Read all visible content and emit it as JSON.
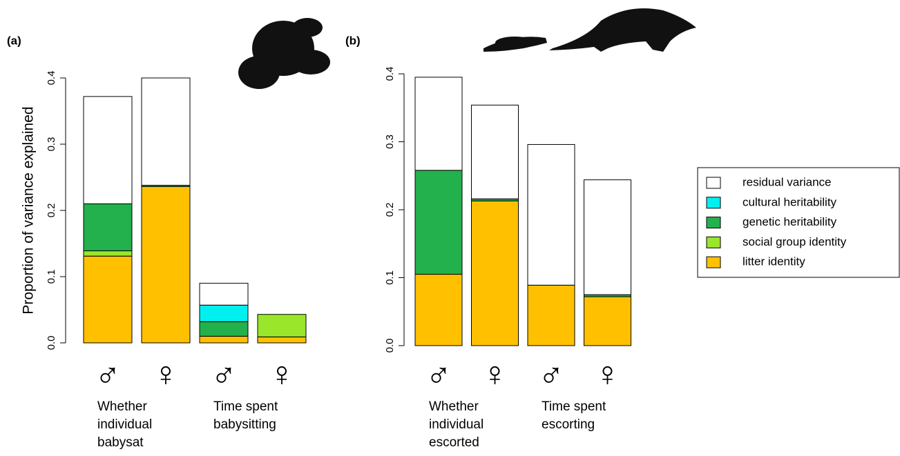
{
  "chart_data": [
    {
      "type": "stacked-bar",
      "panel_label": "(a)",
      "ylabel": "Proportion of variance explained",
      "categories": [
        "♂",
        "♀",
        "♂",
        "♀"
      ],
      "groups": [
        "Whether individual babysat",
        "Time spent babysitting"
      ],
      "ylim": [
        0,
        0.4
      ],
      "yticks": [
        {
          "value": 0,
          "label": "0.0"
        },
        0.1,
        0.2,
        0.3,
        0.4
      ],
      "series": [
        {
          "color": "#ffc000",
          "values": [
            0.131,
            0.236,
            0.01,
            0.009
          ]
        },
        {
          "color": "#99e62a",
          "values": [
            0.008,
            0,
            0,
            0.034
          ]
        },
        {
          "color": "#22b14c",
          "values": [
            0.071,
            0.002,
            0.022,
            0
          ]
        },
        {
          "color": "#00f0f0",
          "values": [
            0,
            0,
            0.025,
            0
          ]
        },
        {
          "color": "#ffffff",
          "values": [
            0.162,
            0.162,
            0.033,
            0
          ]
        }
      ]
    },
    {
      "type": "stacked-bar",
      "panel_label": "(b)",
      "categories": [
        "♂",
        "♀",
        "♂",
        "♀"
      ],
      "groups": [
        "Whether individual escorted",
        "Time spent escorting"
      ],
      "ylim": [
        0,
        0.4
      ],
      "yticks": [
        {
          "value": 0,
          "label": "0.0"
        },
        0.1,
        0.2,
        0.3,
        0.4
      ],
      "legend": "right",
      "series": [
        {
          "name": "litter identity",
          "color": "#ffc000",
          "values": [
            0.105,
            0.213,
            0.089,
            0.072
          ]
        },
        {
          "name": "social group identity",
          "color": "#99e62a",
          "values": [
            0,
            0,
            0,
            0
          ]
        },
        {
          "name": "genetic heritability",
          "color": "#22b14c",
          "values": [
            0.153,
            0.003,
            0,
            0.003
          ]
        },
        {
          "name": "cultural heritability",
          "color": "#00f0f0",
          "values": [
            0,
            0,
            0,
            0
          ]
        },
        {
          "name": "residual variance",
          "color": "#ffffff",
          "values": [
            0.137,
            0.138,
            0.207,
            0.169
          ]
        }
      ]
    }
  ]
}
